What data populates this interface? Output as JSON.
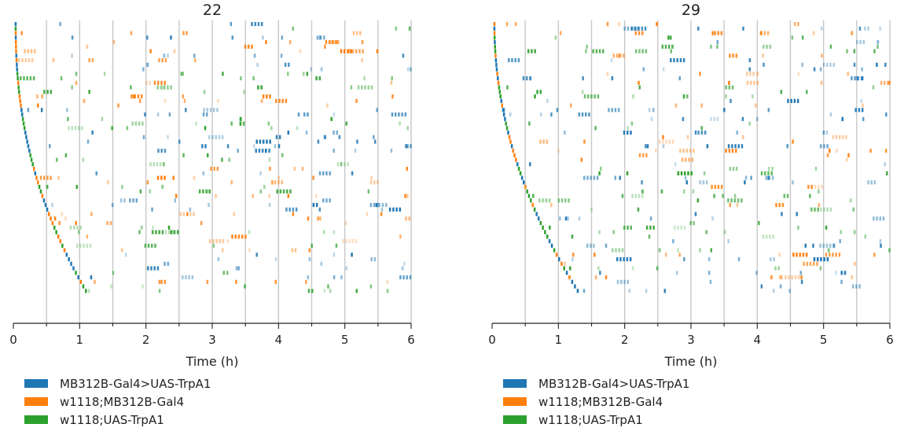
{
  "chart_data": [
    {
      "type": "raster",
      "title": "22",
      "xlabel": "Time (h)",
      "xlim": [
        0,
        6
      ],
      "xticks": [
        "0",
        "1",
        "2",
        "3",
        "4",
        "5",
        "6"
      ],
      "grid_x_every": 0.5,
      "grid": true,
      "legend": "bottom-left",
      "series": [
        {
          "name": "MB312B-Gal4>UAS-TrpA1",
          "color": "#1f77b4"
        },
        {
          "name": "w1118;MB312B-Gal4",
          "color": "#ff7f0e"
        },
        {
          "name": "w1118;UAS-TrpA1",
          "color": "#2ca02c"
        }
      ],
      "n_rows": 60
    },
    {
      "type": "raster",
      "title": "29",
      "xlabel": "Time (h)",
      "xlim": [
        0,
        6
      ],
      "xticks": [
        "0",
        "1",
        "2",
        "3",
        "4",
        "5",
        "6"
      ],
      "grid_x_every": 0.5,
      "grid": true,
      "legend": "bottom-left",
      "series": [
        {
          "name": "MB312B-Gal4>UAS-TrpA1",
          "color": "#1f77b4"
        },
        {
          "name": "w1118;MB312B-Gal4",
          "color": "#ff7f0e"
        },
        {
          "name": "w1118;UAS-TrpA1",
          "color": "#2ca02c"
        }
      ],
      "n_rows": 60
    }
  ]
}
